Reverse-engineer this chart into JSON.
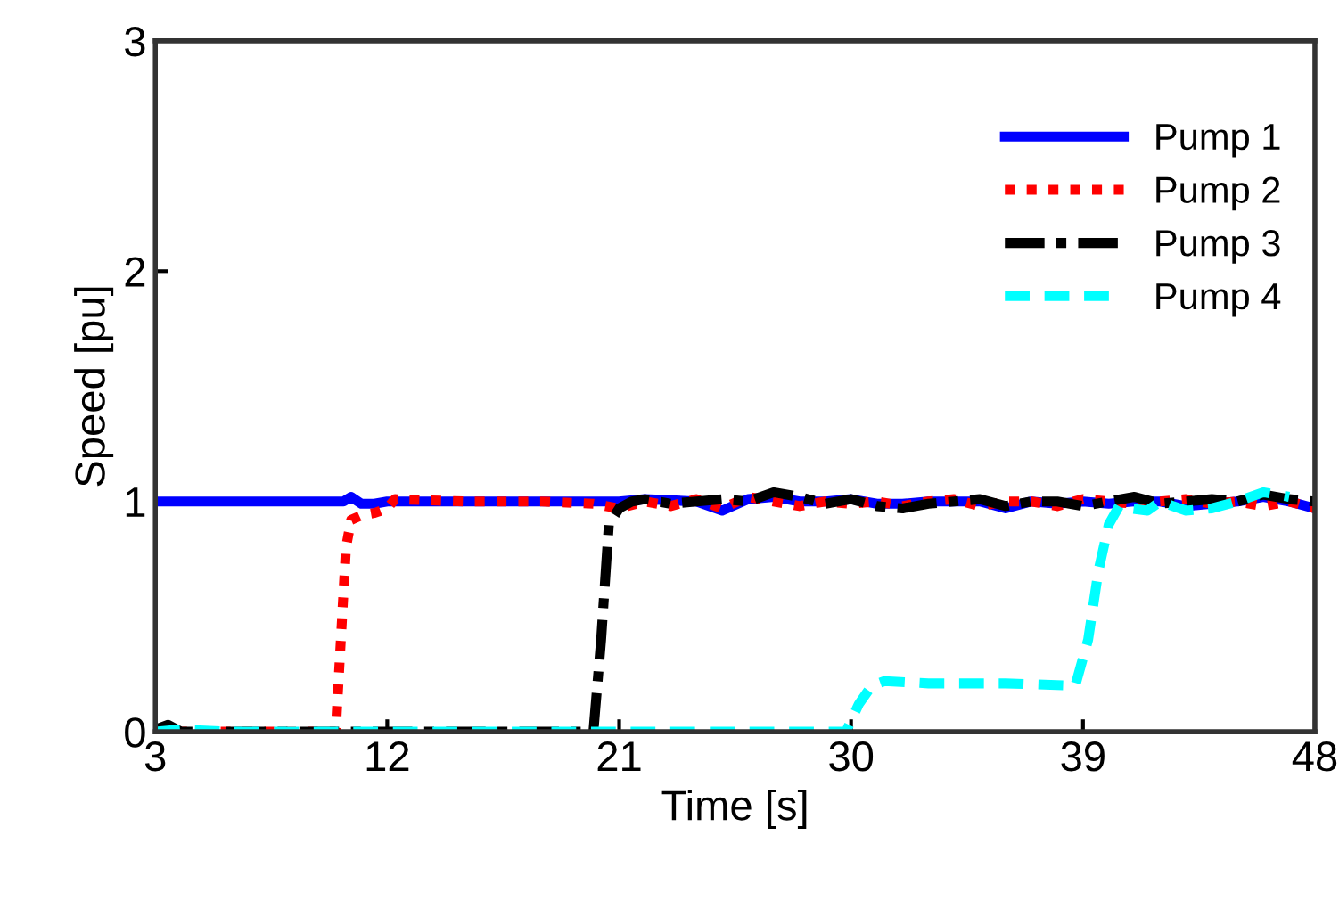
{
  "chart_data": {
    "type": "line",
    "xlabel": "Time [s]",
    "ylabel": "Speed [pu]",
    "xlim": [
      3,
      48
    ],
    "ylim": [
      0,
      3
    ],
    "xticks": [
      3,
      12,
      21,
      30,
      39,
      48
    ],
    "yticks": [
      0,
      1,
      2,
      3
    ],
    "grid": false,
    "legend": "top right",
    "series": [
      {
        "name": "Pump 1",
        "color": "#0000ff",
        "line_style": "solid",
        "x": [
          3,
          6,
          9,
          10.3,
          10.6,
          11,
          11.5,
          12,
          15,
          18,
          21,
          22,
          24,
          25,
          26,
          27,
          28,
          29,
          30,
          31,
          32,
          33,
          34,
          35,
          36,
          37,
          38,
          39,
          40,
          41,
          42,
          43,
          44,
          45,
          46,
          47,
          48
        ],
        "values": [
          1.0,
          1.0,
          1.0,
          1.0,
          1.02,
          0.99,
          0.99,
          1.0,
          1.0,
          1.0,
          1.0,
          1.01,
          1.0,
          0.96,
          1.01,
          1.02,
          1.0,
          1.0,
          1.01,
          0.99,
          0.99,
          1.0,
          1.0,
          1.0,
          0.97,
          1.0,
          0.99,
          1.0,
          0.99,
          1.0,
          1.0,
          0.98,
          0.99,
          1.0,
          1.02,
          1.0,
          0.97
        ]
      },
      {
        "name": "Pump 2",
        "color": "#ff0000",
        "line_style": "dotted",
        "x": [
          3,
          6,
          9,
          10,
          10.2,
          10.4,
          10.6,
          11,
          11.5,
          12,
          12.3,
          15,
          18,
          20,
          21,
          22,
          23,
          24,
          25,
          26,
          27,
          28,
          29,
          30,
          31,
          32,
          33,
          34,
          35,
          36,
          37,
          38,
          39,
          40,
          41,
          42,
          43,
          44,
          45,
          46,
          47,
          48
        ],
        "values": [
          0,
          0,
          0,
          0,
          0.4,
          0.8,
          0.92,
          0.94,
          0.95,
          0.97,
          1.01,
          1.0,
          1.0,
          0.99,
          0.97,
          1.0,
          0.98,
          1.01,
          0.97,
          1.02,
          1.0,
          0.98,
          1.0,
          0.99,
          1.0,
          0.98,
          1.0,
          1.01,
          0.98,
          1.0,
          1.0,
          0.98,
          1.01,
          1.0,
          0.99,
          1.0,
          1.01,
          0.99,
          1.0,
          0.98,
          1.0,
          0.97
        ]
      },
      {
        "name": "Pump 3",
        "color": "#000000",
        "line_style": "dashdot",
        "x": [
          3,
          3.5,
          4,
          6,
          9,
          12,
          15,
          18,
          20,
          20.3,
          20.6,
          21,
          21.5,
          22,
          23,
          24,
          25,
          26,
          27,
          28,
          29,
          30,
          31,
          32,
          33,
          34,
          35,
          36,
          37,
          38,
          39,
          40,
          41,
          42,
          43,
          44,
          45,
          46,
          47,
          48
        ],
        "values": [
          0.01,
          0.03,
          0,
          0,
          0,
          0,
          0,
          0,
          0,
          0.4,
          0.9,
          0.97,
          1.0,
          1.01,
          0.99,
          1.0,
          1.01,
          1.0,
          1.04,
          1.02,
          0.99,
          1.01,
          0.98,
          0.97,
          0.99,
          1.0,
          1.01,
          0.98,
          1.0,
          1.0,
          0.98,
          1.0,
          1.02,
          0.99,
          1.0,
          1.01,
          1.0,
          1.03,
          1.01,
          1.0
        ]
      },
      {
        "name": "Pump 4",
        "color": "#00ffff",
        "line_style": "dashed",
        "x": [
          3,
          4,
          6,
          9,
          12,
          15,
          18,
          21,
          24,
          27,
          29.8,
          30.3,
          30.8,
          31.3,
          33,
          36,
          38.7,
          39.2,
          39.6,
          40,
          40.4,
          40.8,
          41.5,
          42,
          43,
          44,
          45,
          46,
          47
        ],
        "values": [
          0,
          0.01,
          0,
          0,
          0,
          0,
          0,
          0,
          0,
          0,
          0,
          0.12,
          0.2,
          0.22,
          0.21,
          0.21,
          0.2,
          0.4,
          0.7,
          0.9,
          0.98,
          0.97,
          0.96,
          1.0,
          0.96,
          0.97,
          1.0,
          1.04,
          1.02
        ]
      }
    ]
  }
}
